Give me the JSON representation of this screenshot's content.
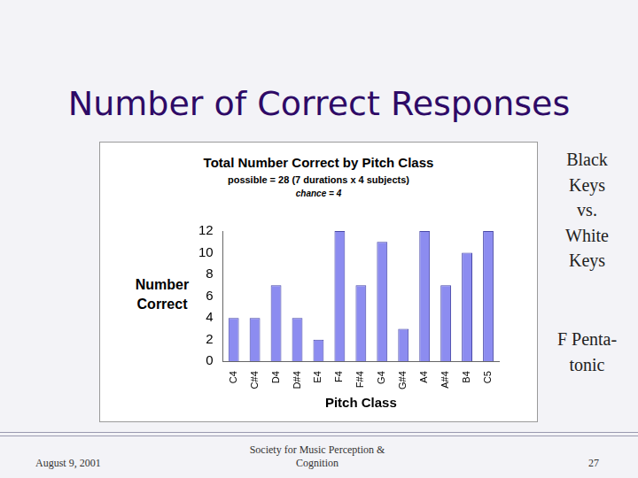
{
  "slide": {
    "title": "Number of Correct Responses",
    "notes": [
      [
        "Black",
        "Keys",
        "vs.",
        "White",
        "Keys"
      ],
      [
        "F Penta-",
        "tonic"
      ]
    ],
    "footer": {
      "date": "August 9, 2001",
      "venue": "Society for Music Perception & Cognition",
      "page": "27"
    }
  },
  "chart_data": {
    "type": "bar",
    "title": "Total Number Correct by Pitch Class",
    "subtitle": "possible = 28 (7 durations x 4 subjects)",
    "annotations": [
      "chance = 4"
    ],
    "x_label": "Pitch Class",
    "y_label": "Number Correct",
    "categories": [
      "C4",
      "C#4",
      "D4",
      "D#4",
      "E4",
      "F4",
      "F#4",
      "G4",
      "G#4",
      "A4",
      "A#4",
      "B4",
      "C5"
    ],
    "values": [
      4,
      4,
      7,
      4,
      2,
      12,
      7,
      11,
      3,
      12,
      7,
      10,
      12
    ],
    "color": "#8c8cf0",
    "ylim": [
      0,
      12
    ],
    "yticks": [
      0,
      2,
      4,
      6,
      8,
      10,
      12
    ],
    "grid": false
  }
}
